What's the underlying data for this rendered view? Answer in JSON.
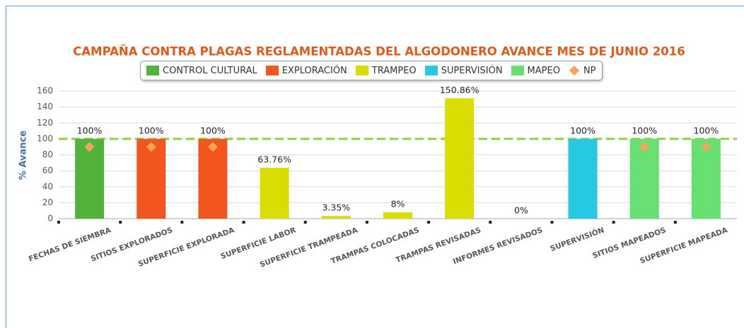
{
  "chart_data": {
    "type": "bar",
    "title": "CAMPAÑA CONTRA PLAGAS REGLAMENTADAS DEL ALGODONERO AVANCE MES DE JUNIO 2016",
    "y_label": "% Avance",
    "categories": [
      "FECHAS DE SIEMBRA",
      "SITIOS EXPLORADOS",
      "SUPERFICIE EXPLORADA",
      "SUPERFICIE LABOR",
      "SUPERFICIE TRAMPEADA",
      "TRAMPAS COLOCADAS",
      "TRAMPAS REVISADAS",
      "INFORMES REVISADOS",
      "SUPERVISIÓN",
      "SITIOS MAPEADOS",
      "SUPERFICIE MAPEADA"
    ],
    "series": [
      {
        "name": "CONTROL CULTURAL",
        "color": "#52b33b",
        "values": [
          100,
          null,
          null,
          null,
          null,
          null,
          null,
          null,
          null,
          null,
          null
        ],
        "value_labels": [
          "100%",
          null,
          null,
          null,
          null,
          null,
          null,
          null,
          null,
          null,
          null
        ]
      },
      {
        "name": "EXPLORACIÓN",
        "color": "#f0561e",
        "values": [
          null,
          100,
          100,
          null,
          null,
          null,
          null,
          null,
          null,
          null,
          null
        ],
        "value_labels": [
          null,
          "100%",
          "100%",
          null,
          null,
          null,
          null,
          null,
          null,
          null,
          null
        ]
      },
      {
        "name": "TRAMPEO",
        "color": "#dbdd00",
        "values": [
          null,
          null,
          null,
          63.76,
          3.35,
          8,
          150.86,
          0,
          null,
          null,
          null
        ],
        "value_labels": [
          null,
          null,
          null,
          "63.76%",
          "3.35%",
          "8%",
          "150.86%",
          "0%",
          null,
          null,
          null
        ]
      },
      {
        "name": "SUPERVISIÓN",
        "color": "#26c8e4",
        "values": [
          null,
          null,
          null,
          null,
          null,
          null,
          null,
          null,
          100,
          null,
          null
        ],
        "value_labels": [
          null,
          null,
          null,
          null,
          null,
          null,
          null,
          null,
          "100%",
          null,
          null
        ]
      },
      {
        "name": "MAPEO",
        "color": "#66e070",
        "values": [
          null,
          null,
          null,
          null,
          null,
          null,
          null,
          null,
          null,
          100,
          100
        ],
        "value_labels": [
          null,
          null,
          null,
          null,
          null,
          null,
          null,
          null,
          null,
          "100%",
          "100%"
        ]
      },
      {
        "name": "NP",
        "color": "#f7a35c",
        "marker": "diamond",
        "values": [
          90,
          90,
          90,
          null,
          null,
          null,
          null,
          null,
          null,
          90,
          90
        ]
      }
    ],
    "reference_line": {
      "value": 100,
      "color": "#8fce3c"
    },
    "ylim": [
      0,
      160
    ],
    "yticks": [
      0,
      20,
      40,
      60,
      80,
      100,
      120,
      140,
      160
    ],
    "grid": true
  }
}
